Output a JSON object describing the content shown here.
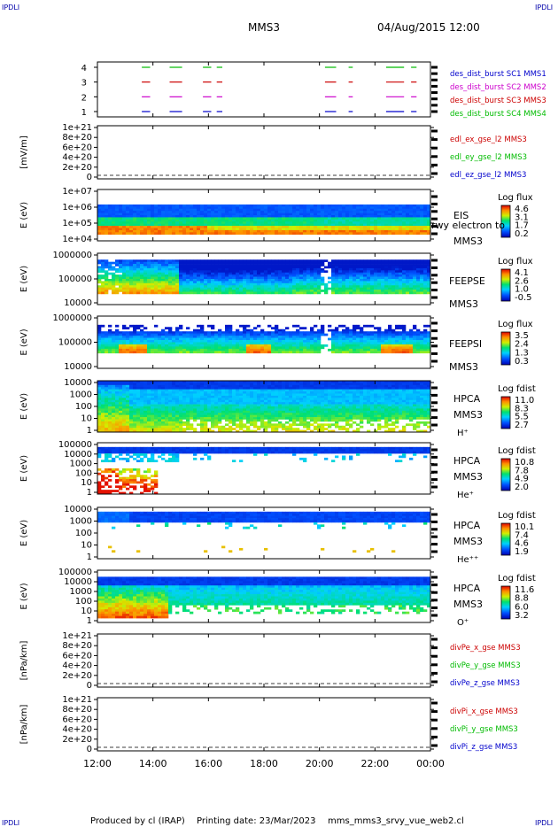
{
  "header": {
    "logo_left": "IPDLI",
    "logo_right": "IPDLI",
    "mission": "MMS3",
    "datetime": "04/Aug/2015 12:00"
  },
  "footer": {
    "logo_left": "IPDLI",
    "logo_right": "IPDLI",
    "producer": "Produced by cl (IRAP)",
    "printing": "Printing date: 23/Mar/2023",
    "script": "mms_mms3_srvy_vue_web2.cl"
  },
  "time_axis": {
    "ticks": [
      "12:00",
      "14:00",
      "16:00",
      "18:00",
      "20:00",
      "22:00",
      "00:00"
    ],
    "hours": [
      12,
      14,
      16,
      18,
      20,
      22,
      24
    ],
    "range_hours": [
      12,
      24
    ]
  },
  "chart_data": [
    {
      "type": "line",
      "id": "burst",
      "yticks": [
        "4",
        "3",
        "2",
        "1"
      ],
      "series": [
        {
          "name": "des_dist_burst SC1 MMS1",
          "color": "#0000cc",
          "level": 1
        },
        {
          "name": "des_dist_burst SC2 MMS2",
          "color": "#cc00cc",
          "level": 2
        },
        {
          "name": "des_dist_burst SC3 MMS3",
          "color": "#cc0000",
          "level": 3
        },
        {
          "name": "des_dist_burst SC4 MMS4",
          "color": "#00bb00",
          "level": 4
        }
      ],
      "intervals_hours": [
        [
          13.6,
          13.9
        ],
        [
          14.6,
          15.05
        ],
        [
          15.8,
          16.1
        ],
        [
          16.3,
          16.5
        ],
        [
          20.2,
          20.6
        ],
        [
          21.05,
          21.2
        ],
        [
          22.4,
          23.05
        ],
        [
          23.3,
          23.5
        ]
      ]
    },
    {
      "type": "line",
      "id": "edp",
      "ylabel": "[mV/m]",
      "yticks": [
        "1e+21",
        "8e+20",
        "6e+20",
        "4e+20",
        "2e+20",
        "0"
      ],
      "series": [
        {
          "name": "edl_ex_gse_l2 MMS3",
          "color": "#cc0000"
        },
        {
          "name": "edl_ey_gse_l2 MMS3",
          "color": "#00bb00"
        },
        {
          "name": "edl_ez_gse_l2 MMS3",
          "color": "#0000cc"
        }
      ]
    },
    {
      "type": "heatmap",
      "id": "eis",
      "ylabel": "E (eV)",
      "yticks": [
        "1e+07",
        "1e+06",
        "1e+05",
        "1e+04"
      ],
      "instrument": [
        "EIS",
        "rwy electron to",
        "MMS3"
      ],
      "colorbar_title": "Log flux",
      "colorbar_ticks": [
        "4.6",
        "3.1",
        "1.7",
        "0.2"
      ]
    },
    {
      "type": "heatmap",
      "id": "feepse",
      "ylabel": "E (eV)",
      "yticks": [
        "1000000",
        "100000",
        "10000"
      ],
      "instrument": [
        "FEEPSE",
        "MMS3"
      ],
      "colorbar_title": "Log flux",
      "colorbar_ticks": [
        "4.1",
        "2.6",
        "1.0",
        "-0.5"
      ]
    },
    {
      "type": "heatmap",
      "id": "feepsi",
      "ylabel": "E (eV)",
      "yticks": [
        "1000000",
        "100000",
        "10000"
      ],
      "instrument": [
        "FEEPSI",
        "MMS3"
      ],
      "colorbar_title": "Log flux",
      "colorbar_ticks": [
        "3.5",
        "2.4",
        "1.3",
        "0.3"
      ]
    },
    {
      "type": "heatmap",
      "id": "hpca_h",
      "ylabel": "E (eV)",
      "yticks": [
        "10000",
        "1000",
        "100",
        "10",
        "1"
      ],
      "instrument": [
        "HPCA",
        "MMS3",
        "H⁺"
      ],
      "colorbar_title": "Log fdist",
      "colorbar_ticks": [
        "11.0",
        "8.3",
        "5.5",
        "2.7"
      ]
    },
    {
      "type": "heatmap",
      "id": "hpca_he",
      "ylabel": "E (eV)",
      "yticks": [
        "100000",
        "10000",
        "1000",
        "100",
        "10",
        "1"
      ],
      "instrument": [
        "HPCA",
        "MMS3",
        "He⁺"
      ],
      "colorbar_title": "Log fdist",
      "colorbar_ticks": [
        "10.8",
        "7.8",
        "4.9",
        "2.0"
      ]
    },
    {
      "type": "heatmap",
      "id": "hpca_hepp",
      "ylabel": "E (eV)",
      "yticks": [
        "10000",
        "1000",
        "100",
        "10",
        "1"
      ],
      "instrument": [
        "HPCA",
        "MMS3",
        "He⁺⁺"
      ],
      "colorbar_title": "Log fdist",
      "colorbar_ticks": [
        "10.1",
        "7.4",
        "4.6",
        "1.9"
      ]
    },
    {
      "type": "heatmap",
      "id": "hpca_o",
      "ylabel": "E (eV)",
      "yticks": [
        "100000",
        "10000",
        "1000",
        "100",
        "10",
        "1"
      ],
      "instrument": [
        "HPCA",
        "MMS3",
        "O⁺"
      ],
      "colorbar_title": "Log fdist",
      "colorbar_ticks": [
        "11.6",
        "8.8",
        "6.0",
        "3.2"
      ]
    },
    {
      "type": "line",
      "id": "divpe",
      "ylabel": "[nPa/km]",
      "yticks": [
        "1e+21",
        "8e+20",
        "6e+20",
        "4e+20",
        "2e+20",
        "0"
      ],
      "series": [
        {
          "name": "divPe_x_gse MMS3",
          "color": "#cc0000"
        },
        {
          "name": "divPe_y_gse MMS3",
          "color": "#00bb00"
        },
        {
          "name": "divPe_z_gse MMS3",
          "color": "#0000cc"
        }
      ]
    },
    {
      "type": "line",
      "id": "divpi",
      "ylabel": "[nPa/km]",
      "yticks": [
        "1e+21",
        "8e+20",
        "6e+20",
        "4e+20",
        "2e+20",
        "0"
      ],
      "series": [
        {
          "name": "divPi_x_gse MMS3",
          "color": "#cc0000"
        },
        {
          "name": "divPi_y_gse MMS3",
          "color": "#00bb00"
        },
        {
          "name": "divPi_z_gse MMS3",
          "color": "#0000cc"
        }
      ]
    }
  ]
}
